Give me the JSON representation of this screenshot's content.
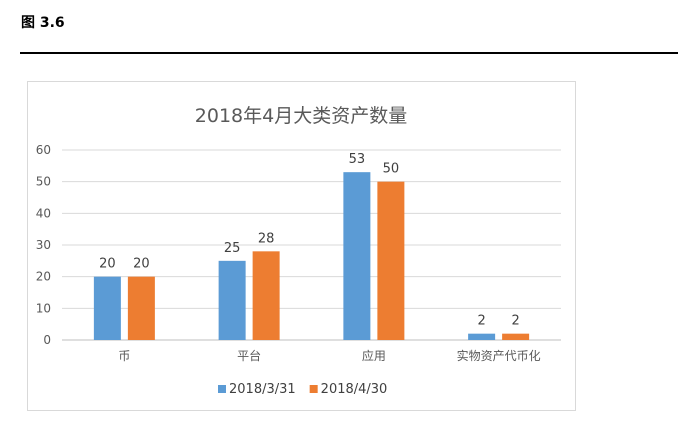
{
  "figure_label": "图 3.6",
  "chart_data": {
    "type": "bar",
    "title": "2018年4月大类资产数量",
    "categories": [
      "币",
      "平台",
      "应用",
      "实物资产代币化"
    ],
    "series": [
      {
        "name": "2018/3/31",
        "values": [
          20,
          25,
          53,
          2
        ],
        "color": "#5b9bd5"
      },
      {
        "name": "2018/4/30",
        "values": [
          20,
          28,
          50,
          2
        ],
        "color": "#ed7d31"
      }
    ],
    "ylim": [
      0,
      60
    ],
    "yticks": [
      0,
      10,
      20,
      30,
      40,
      50,
      60
    ],
    "grid": true,
    "legend": "bottom",
    "xlabel": "",
    "ylabel": ""
  }
}
